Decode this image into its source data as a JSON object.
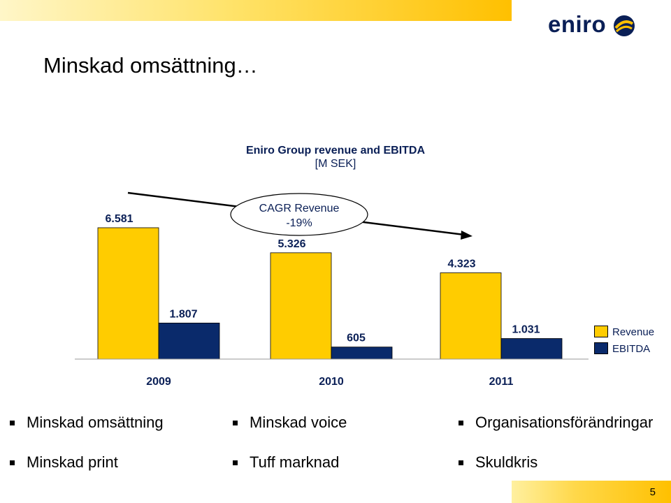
{
  "slide": {
    "title": "Minskad omsättning…",
    "page_number": "5",
    "logo_text": "eniro"
  },
  "chart_data": {
    "type": "bar",
    "title": "Eniro Group revenue and EBITDA",
    "subtitle": "[M SEK]",
    "categories": [
      "2009",
      "2010",
      "2011"
    ],
    "series": [
      {
        "name": "Revenue",
        "values": [
          6581,
          5326,
          4323
        ],
        "labels": [
          "6.581",
          "5.326",
          "4.323"
        ],
        "color": "#ffcc00"
      },
      {
        "name": "EBITDA",
        "values": [
          1807,
          605,
          1031
        ],
        "labels": [
          "1.807",
          "605",
          "1.031"
        ],
        "color": "#0a2a6b"
      }
    ],
    "ylim": [
      0,
      7000
    ],
    "legend_position": "right",
    "annotation": {
      "line1": "CAGR Revenue",
      "line2": "-19%"
    }
  },
  "bullets": [
    "Minskad omsättning",
    "Minskad voice",
    "Organisationsförändringar",
    "Minskad print",
    "Tuff marknad",
    "Skuldkris"
  ]
}
